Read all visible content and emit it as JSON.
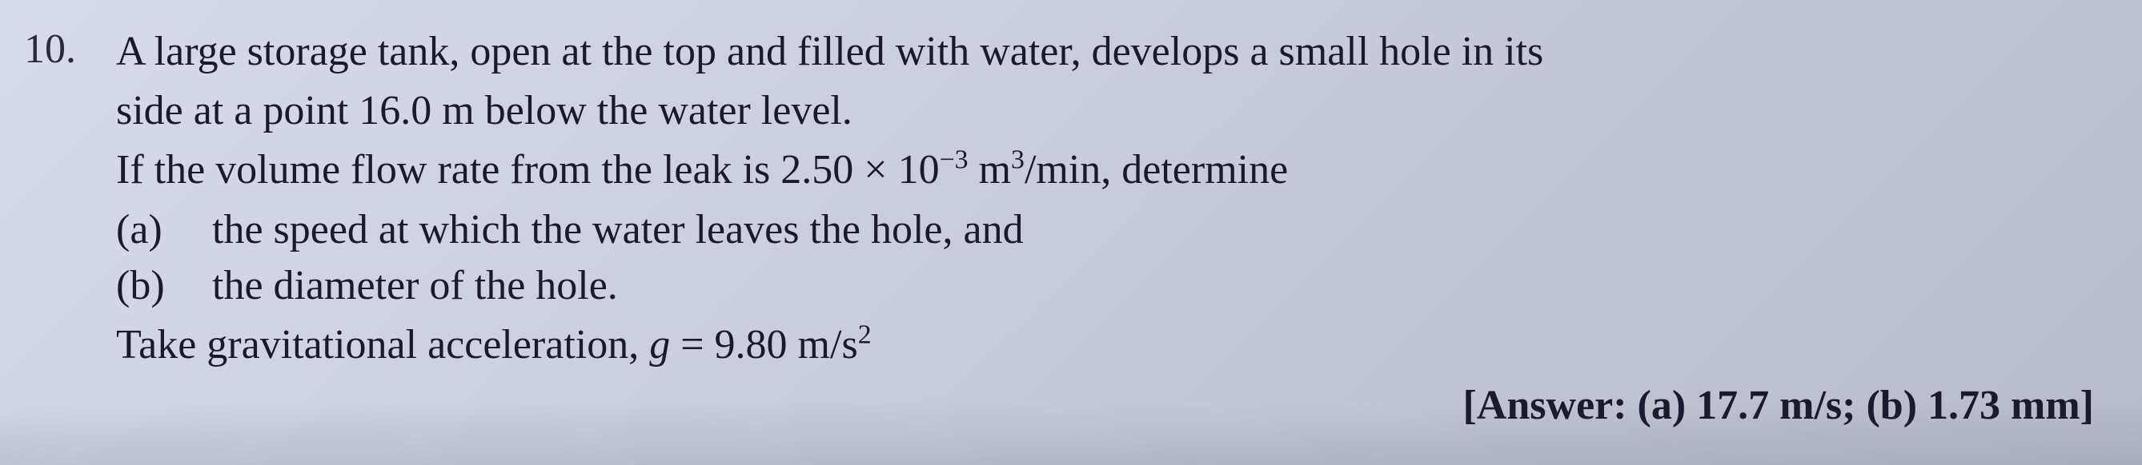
{
  "problem": {
    "number": "10.",
    "line1": "A large storage tank, open at the top and filled with water, develops a small hole in its",
    "line2": "side at a point 16.0 m below the water level.",
    "line3_prefix": "If the volume flow rate from the leak is 2.50 × 10",
    "line3_exp": "−3",
    "line3_mid": " m",
    "line3_exp2": "3",
    "line3_suffix": "/min, determine",
    "parts": {
      "a": {
        "label": "(a)",
        "text": "the speed at which the water leaves the hole, and"
      },
      "b": {
        "label": "(b)",
        "text": "the diameter of the hole."
      }
    },
    "take_prefix": "Take gravitational acceleration, ",
    "take_g": "g",
    "take_mid": " = 9.80 m/s",
    "take_exp": "2",
    "answer": "[Answer: (a) 17.7 m/s; (b) 1.73 mm]"
  },
  "styling": {
    "font_family": "Times New Roman",
    "font_size_pt": 52,
    "text_color": "#1a1a2e",
    "background_gradient_start": "#d8dce8",
    "background_gradient_end": "#b8bcc8",
    "line_height": 1.35,
    "answer_font_weight": "bold"
  }
}
